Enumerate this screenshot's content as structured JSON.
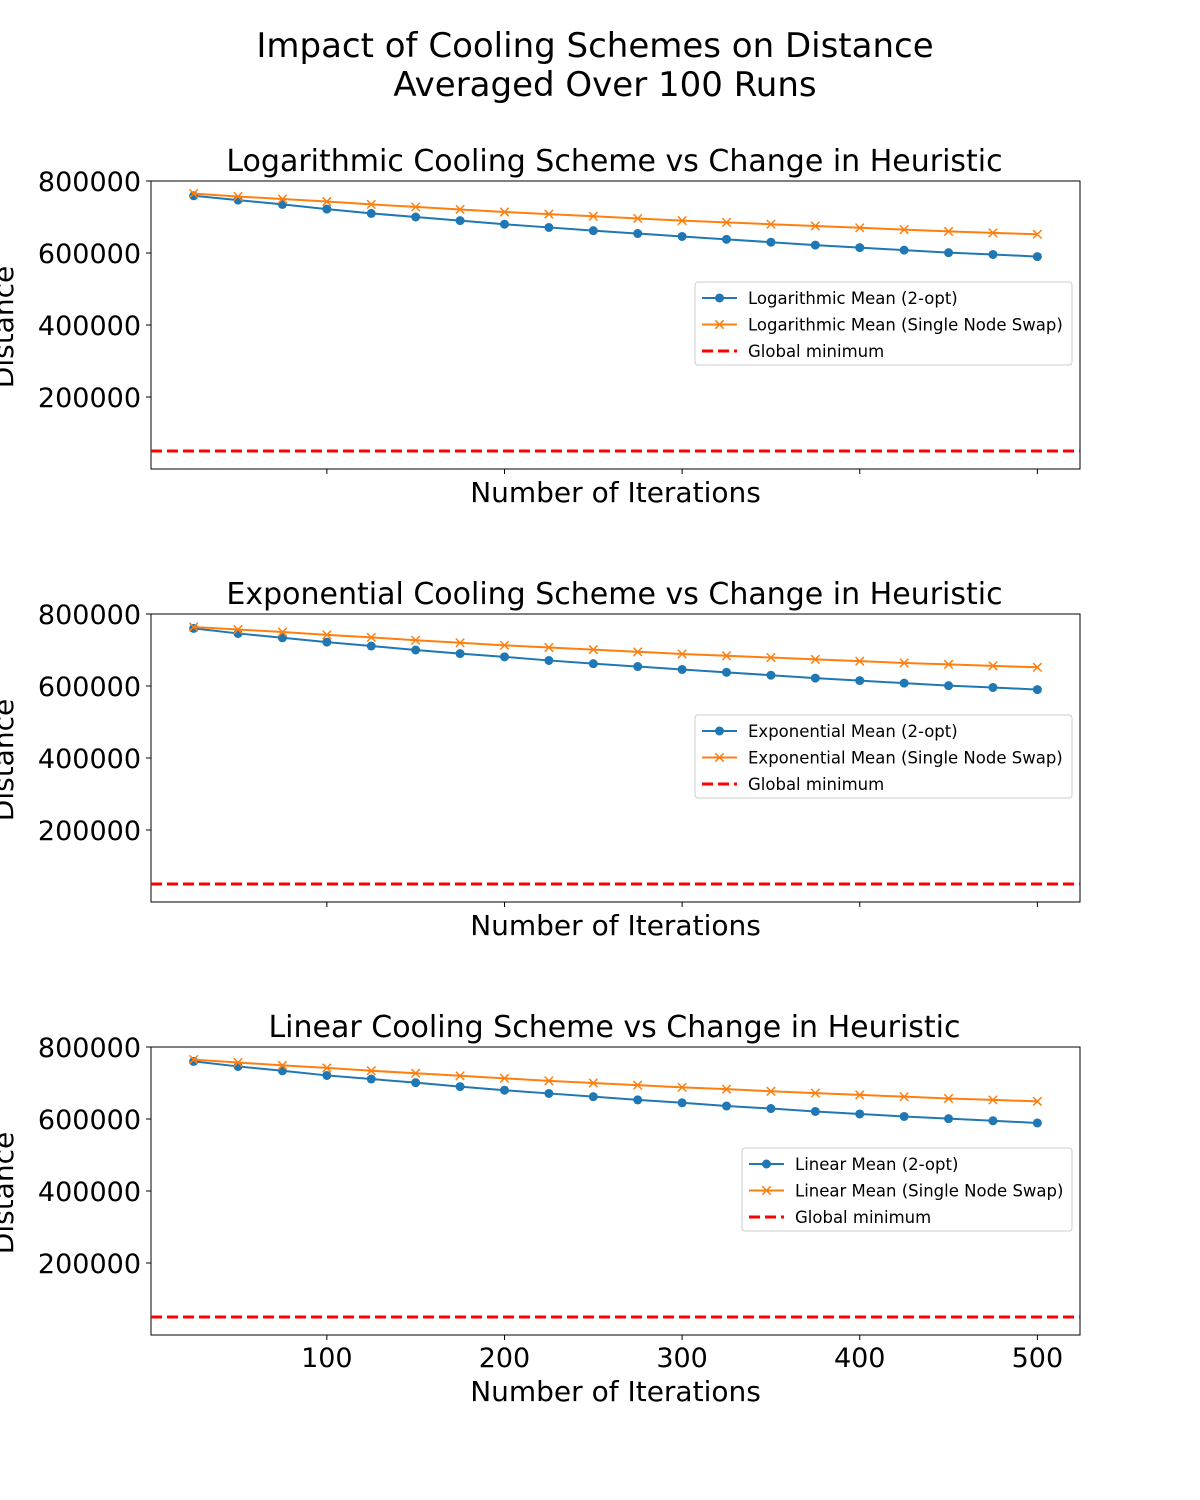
{
  "figure": {
    "suptitle_lines": [
      "Impact of Cooling Schemes on Distance",
      "Averaged Over 100 Runs"
    ]
  },
  "chart_data": [
    {
      "type": "line",
      "title": "Logarithmic Cooling Scheme vs Change in Heuristic",
      "xlabel": "Number of Iterations",
      "ylabel": "Distance",
      "xlim": [
        1,
        524
      ],
      "ylim": [
        0,
        800000
      ],
      "xticks": [
        100,
        200,
        300,
        400,
        500
      ],
      "xtick_labels_visible": false,
      "yticks": [
        200000,
        400000,
        600000,
        800000
      ],
      "grid": false,
      "legend_position": "center-right",
      "x": [
        25,
        50,
        75,
        100,
        125,
        150,
        175,
        200,
        225,
        250,
        275,
        300,
        325,
        350,
        375,
        400,
        425,
        450,
        475,
        500
      ],
      "series": [
        {
          "name": "Logarithmic Mean (2-opt)",
          "color": "#1f77b4",
          "marker": "circle",
          "values": [
            759000,
            747000,
            735000,
            722000,
            710000,
            700000,
            690000,
            680000,
            671000,
            662000,
            654000,
            646000,
            638000,
            630000,
            622000,
            615000,
            608000,
            601000,
            596000,
            590000
          ]
        },
        {
          "name": "Logarithmic Mean (Single Node Swap)",
          "color": "#ff7f0e",
          "marker": "x",
          "values": [
            765000,
            757000,
            750000,
            743000,
            735000,
            728000,
            721000,
            714000,
            708000,
            702000,
            696000,
            690000,
            685000,
            680000,
            675000,
            670000,
            665000,
            660000,
            656000,
            652000
          ]
        }
      ],
      "reference_line": {
        "name": "Global minimum",
        "color": "#ff0000",
        "style": "dashed",
        "value": 50000
      }
    },
    {
      "type": "line",
      "title": "Exponential Cooling Scheme vs Change in Heuristic",
      "xlabel": "Number of Iterations",
      "ylabel": "Distance",
      "xlim": [
        1,
        524
      ],
      "ylim": [
        0,
        800000
      ],
      "xticks": [
        100,
        200,
        300,
        400,
        500
      ],
      "xtick_labels_visible": false,
      "yticks": [
        200000,
        400000,
        600000,
        800000
      ],
      "grid": false,
      "legend_position": "center-right",
      "x": [
        25,
        50,
        75,
        100,
        125,
        150,
        175,
        200,
        225,
        250,
        275,
        300,
        325,
        350,
        375,
        400,
        425,
        450,
        475,
        500
      ],
      "series": [
        {
          "name": "Exponential Mean (2-opt)",
          "color": "#1f77b4",
          "marker": "circle",
          "values": [
            760000,
            746000,
            734000,
            722000,
            711000,
            700000,
            690000,
            681000,
            671000,
            662000,
            654000,
            646000,
            638000,
            630000,
            622000,
            615000,
            608000,
            601000,
            596000,
            590000
          ]
        },
        {
          "name": "Exponential Mean (Single Node Swap)",
          "color": "#ff7f0e",
          "marker": "x",
          "values": [
            764000,
            757000,
            750000,
            742000,
            735000,
            727000,
            720000,
            713000,
            707000,
            701000,
            695000,
            689000,
            684000,
            679000,
            674000,
            669000,
            664000,
            660000,
            656000,
            652000
          ]
        }
      ],
      "reference_line": {
        "name": "Global minimum",
        "color": "#ff0000",
        "style": "dashed",
        "value": 50000
      }
    },
    {
      "type": "line",
      "title": "Linear Cooling Scheme vs Change in Heuristic",
      "xlabel": "Number of Iterations",
      "ylabel": "Distance",
      "xlim": [
        1,
        524
      ],
      "ylim": [
        0,
        800000
      ],
      "xticks": [
        100,
        200,
        300,
        400,
        500
      ],
      "xtick_labels_visible": true,
      "yticks": [
        200000,
        400000,
        600000,
        800000
      ],
      "grid": false,
      "legend_position": "center-right",
      "x": [
        25,
        50,
        75,
        100,
        125,
        150,
        175,
        200,
        225,
        250,
        275,
        300,
        325,
        350,
        375,
        400,
        425,
        450,
        475,
        500
      ],
      "series": [
        {
          "name": "Linear Mean (2-opt)",
          "color": "#1f77b4",
          "marker": "circle",
          "values": [
            760000,
            746000,
            734000,
            721000,
            711000,
            701000,
            690000,
            680000,
            671000,
            662000,
            653000,
            645000,
            636000,
            629000,
            621000,
            614000,
            607000,
            601000,
            595000,
            589000
          ]
        },
        {
          "name": "Linear Mean (Single Node Swap)",
          "color": "#ff7f0e",
          "marker": "x",
          "values": [
            765000,
            757000,
            749000,
            742000,
            734000,
            727000,
            720000,
            713000,
            706000,
            700000,
            694000,
            688000,
            683000,
            677000,
            672000,
            667000,
            662000,
            657000,
            653000,
            649000
          ]
        }
      ],
      "reference_line": {
        "name": "Global minimum",
        "color": "#ff0000",
        "style": "dashed",
        "value": 50000
      }
    }
  ]
}
